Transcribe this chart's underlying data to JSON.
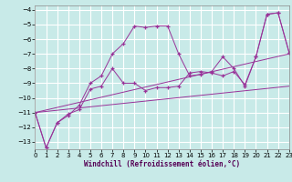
{
  "xlabel": "Windchill (Refroidissement éolien,°C)",
  "background_color": "#c8eae8",
  "grid_color": "#ffffff",
  "line_color": "#993399",
  "xlim": [
    0,
    23
  ],
  "ylim": [
    -13.5,
    -3.7
  ],
  "yticks": [
    -13,
    -12,
    -11,
    -10,
    -9,
    -8,
    -7,
    -6,
    -5,
    -4
  ],
  "xticks": [
    0,
    1,
    2,
    3,
    4,
    5,
    6,
    7,
    8,
    9,
    10,
    11,
    12,
    13,
    14,
    15,
    16,
    17,
    18,
    19,
    20,
    21,
    22,
    23
  ],
  "curves": [
    {
      "x": [
        0,
        1,
        2,
        3,
        4,
        5,
        6,
        7,
        8,
        9,
        10,
        11,
        12,
        13,
        14,
        15,
        16,
        17,
        18,
        19,
        20,
        21,
        22,
        23
      ],
      "y": [
        -11,
        -13.4,
        -11.7,
        -11.1,
        -10.8,
        -9.4,
        -9.2,
        -8.0,
        -9.0,
        -9.0,
        -9.5,
        -9.3,
        -9.3,
        -9.2,
        -8.3,
        -8.2,
        -8.3,
        -8.5,
        -8.2,
        -9.1,
        -7.2,
        -4.3,
        -4.2,
        -6.9
      ],
      "marker": "+",
      "linestyle": "-"
    },
    {
      "x": [
        0,
        1,
        2,
        3,
        4,
        5,
        6,
        7,
        8,
        9,
        10,
        11,
        12,
        13,
        14,
        15,
        16,
        17,
        18,
        19,
        20,
        21,
        22,
        23
      ],
      "y": [
        -11,
        -13.4,
        -11.7,
        -11.2,
        -10.5,
        -9.0,
        -8.5,
        -7.0,
        -6.3,
        -5.1,
        -5.2,
        -5.1,
        -5.1,
        -7.0,
        -8.5,
        -8.4,
        -8.2,
        -7.2,
        -8.0,
        -9.2,
        -7.2,
        -4.3,
        -4.2,
        -6.9
      ],
      "marker": "+",
      "linestyle": "-"
    },
    {
      "x": [
        0,
        23
      ],
      "y": [
        -11,
        -7.0
      ],
      "marker": null,
      "linestyle": "-"
    },
    {
      "x": [
        0,
        23
      ],
      "y": [
        -11,
        -9.2
      ],
      "marker": null,
      "linestyle": "-"
    }
  ]
}
